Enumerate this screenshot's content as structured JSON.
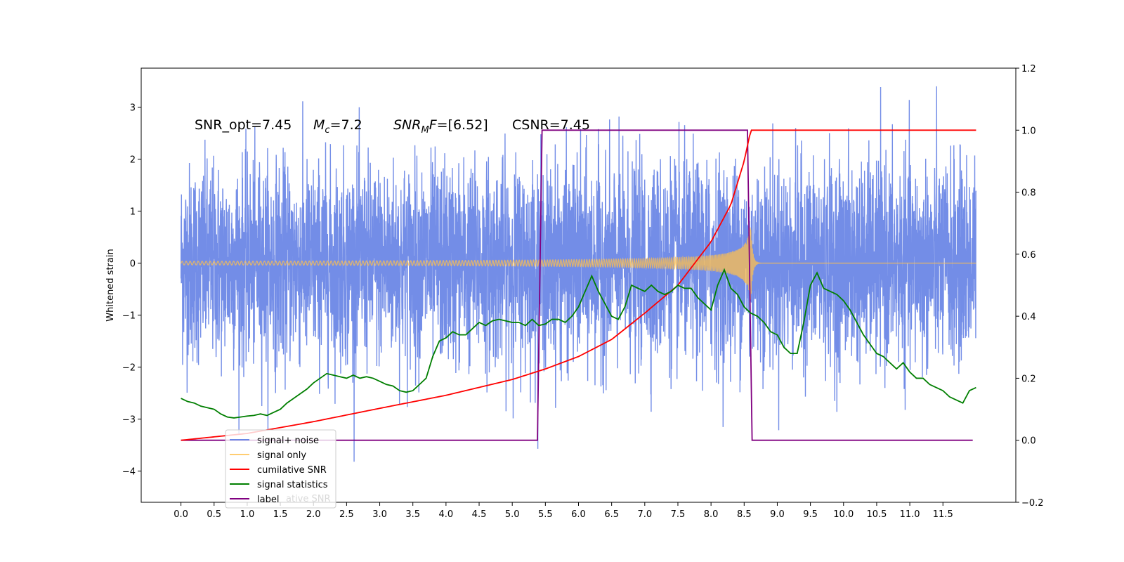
{
  "chart_data": {
    "type": "line",
    "title": "",
    "annotation": {
      "snr_opt_label": "SNR_opt=7.45",
      "mc_label_prefix": "M",
      "mc_label_sub": "c",
      "mc_label_value": "=7.2",
      "snr_mf_prefix": "SNR",
      "snr_mf_sub": "M",
      "snr_mf_italic": "F",
      "snr_mf_value": "=[6.52]",
      "csnr_label": "CSNR=7.45"
    },
    "xlabel": "",
    "ylabel": "Whitened strain",
    "xlim": [
      -0.6,
      12.6
    ],
    "ylim": [
      -4.6,
      3.75
    ],
    "y2lim": [
      -0.2,
      1.2
    ],
    "x_ticks": [
      "0.0",
      "0.5",
      "1.0",
      "1.5",
      "2.0",
      "2.5",
      "3.0",
      "3.5",
      "4.0",
      "4.5",
      "5.0",
      "5.5",
      "6.0",
      "6.5",
      "7.0",
      "7.5",
      "8.0",
      "8.5",
      "9.0",
      "9.5",
      "10.0",
      "10.5",
      "11.0",
      "11.5"
    ],
    "y_ticks": [
      "3",
      "2",
      "1",
      "0",
      "−1",
      "−2",
      "−3",
      "−4"
    ],
    "y_tick_values": [
      3,
      2,
      1,
      0,
      -1,
      -2,
      -3,
      -4
    ],
    "y2_ticks": [
      "1.2",
      "1.0",
      "0.8",
      "0.6",
      "0.4",
      "0.2",
      "0.0",
      "−0.2"
    ],
    "y2_tick_values": [
      1.2,
      1.0,
      0.8,
      0.6,
      0.4,
      0.2,
      0.0,
      -0.2
    ],
    "grid": false,
    "legend_position": "lower-left",
    "legend": [
      {
        "label": "signal+ noise",
        "color": "#6b87e6"
      },
      {
        "label": "signal only",
        "color": "#ffc04d"
      },
      {
        "label": "cumilative SNR",
        "color": "#ff0000"
      },
      {
        "label": "signal statistics",
        "color": "#007f00"
      },
      {
        "label": "label",
        "color": "#800080"
      }
    ],
    "legend_overlap_text": "ative SNR",
    "series": [
      {
        "name": "signal+ noise",
        "axis": "left",
        "color": "#6b87e6",
        "x_range": [
          0.0,
          12.0
        ],
        "y_range": [
          -4.1,
          3.4
        ],
        "description": "dense whitened noise, approximately within ±2"
      },
      {
        "name": "signal only",
        "axis": "left",
        "color": "#ffc04d",
        "chirp_start": 0.0,
        "merger_time": 8.6,
        "peak_amplitude": 0.8
      },
      {
        "name": "cumilative SNR",
        "axis": "right",
        "color": "#ff0000",
        "x": [
          0.0,
          1.0,
          2.0,
          3.0,
          4.0,
          5.0,
          5.5,
          6.0,
          6.5,
          7.0,
          7.5,
          8.0,
          8.3,
          8.5,
          8.6,
          12.0
        ],
        "y": [
          0.0,
          0.022,
          0.06,
          0.103,
          0.145,
          0.196,
          0.23,
          0.27,
          0.325,
          0.41,
          0.5,
          0.64,
          0.76,
          0.9,
          1.0,
          1.0
        ]
      },
      {
        "name": "signal statistics",
        "axis": "right",
        "color": "#007f00",
        "x": [
          0.0,
          0.1,
          0.2,
          0.3,
          0.4,
          0.5,
          0.6,
          0.7,
          0.8,
          0.9,
          1.0,
          1.1,
          1.2,
          1.3,
          1.4,
          1.5,
          1.6,
          1.7,
          1.8,
          1.9,
          2.0,
          2.1,
          2.2,
          2.3,
          2.4,
          2.5,
          2.6,
          2.7,
          2.8,
          2.9,
          3.0,
          3.1,
          3.2,
          3.3,
          3.4,
          3.5,
          3.6,
          3.7,
          3.8,
          3.9,
          4.0,
          4.1,
          4.2,
          4.3,
          4.4,
          4.5,
          4.6,
          4.7,
          4.8,
          4.9,
          5.0,
          5.1,
          5.2,
          5.3,
          5.4,
          5.5,
          5.6,
          5.7,
          5.8,
          5.9,
          6.0,
          6.1,
          6.2,
          6.3,
          6.4,
          6.5,
          6.6,
          6.7,
          6.8,
          6.9,
          7.0,
          7.1,
          7.2,
          7.3,
          7.4,
          7.5,
          7.6,
          7.7,
          7.8,
          7.9,
          8.0,
          8.1,
          8.2,
          8.3,
          8.4,
          8.5,
          8.6,
          8.7,
          8.8,
          8.9,
          9.0,
          9.1,
          9.2,
          9.3,
          9.4,
          9.5,
          9.6,
          9.7,
          9.8,
          9.9,
          10.0,
          10.1,
          10.2,
          10.3,
          10.4,
          10.5,
          10.6,
          10.7,
          10.8,
          10.9,
          11.0,
          11.1,
          11.2,
          11.3,
          11.4,
          11.5,
          11.6,
          11.7,
          11.8,
          11.9,
          12.0
        ],
        "y": [
          0.135,
          0.125,
          0.12,
          0.11,
          0.105,
          0.1,
          0.085,
          0.075,
          0.072,
          0.075,
          0.078,
          0.08,
          0.085,
          0.08,
          0.09,
          0.1,
          0.12,
          0.135,
          0.15,
          0.165,
          0.185,
          0.2,
          0.215,
          0.21,
          0.205,
          0.2,
          0.21,
          0.2,
          0.205,
          0.2,
          0.19,
          0.18,
          0.175,
          0.16,
          0.155,
          0.16,
          0.18,
          0.2,
          0.27,
          0.32,
          0.33,
          0.35,
          0.34,
          0.34,
          0.36,
          0.38,
          0.37,
          0.385,
          0.39,
          0.385,
          0.38,
          0.38,
          0.37,
          0.39,
          0.37,
          0.375,
          0.39,
          0.39,
          0.38,
          0.4,
          0.43,
          0.48,
          0.53,
          0.48,
          0.44,
          0.4,
          0.39,
          0.43,
          0.5,
          0.49,
          0.48,
          0.5,
          0.48,
          0.47,
          0.48,
          0.5,
          0.49,
          0.49,
          0.46,
          0.44,
          0.42,
          0.5,
          0.55,
          0.49,
          0.47,
          0.43,
          0.41,
          0.4,
          0.38,
          0.35,
          0.34,
          0.3,
          0.28,
          0.28,
          0.38,
          0.5,
          0.54,
          0.49,
          0.48,
          0.47,
          0.45,
          0.42,
          0.38,
          0.34,
          0.31,
          0.28,
          0.27,
          0.25,
          0.23,
          0.25,
          0.22,
          0.2,
          0.2,
          0.18,
          0.17,
          0.16,
          0.14,
          0.13,
          0.12,
          0.16,
          0.17
        ]
      },
      {
        "name": "label",
        "axis": "right",
        "color": "#800080",
        "x": [
          0.0,
          5.38,
          5.45,
          8.55,
          8.62,
          11.95
        ],
        "y": [
          0.0,
          0.0,
          1.0,
          1.0,
          0.0,
          0.0
        ]
      }
    ]
  }
}
